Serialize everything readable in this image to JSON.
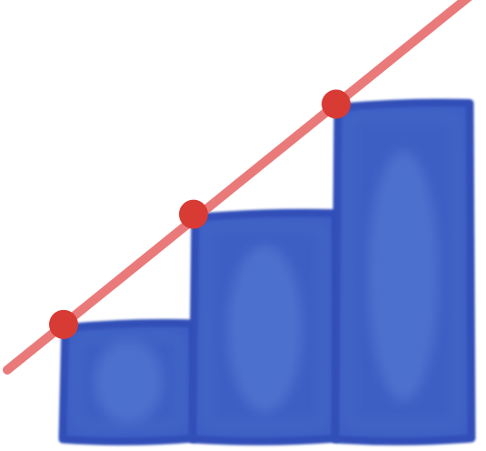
{
  "chart_data": {
    "type": "bar",
    "categories": [
      "",
      "",
      ""
    ],
    "values": [
      1,
      2,
      3
    ],
    "ylim": [
      0,
      3.45
    ],
    "grid": false,
    "legend": "none",
    "trend_line": {
      "type": "linear",
      "points": [
        1,
        2,
        3
      ]
    }
  },
  "colors": {
    "bar_fill": "#3d5fc4",
    "bar_outline": "#3350b8",
    "bar_inner_glow": "#5a7fd6",
    "trend_line": "#e86c6c",
    "trend_point": "#d83a34",
    "background": "#ffffff"
  }
}
